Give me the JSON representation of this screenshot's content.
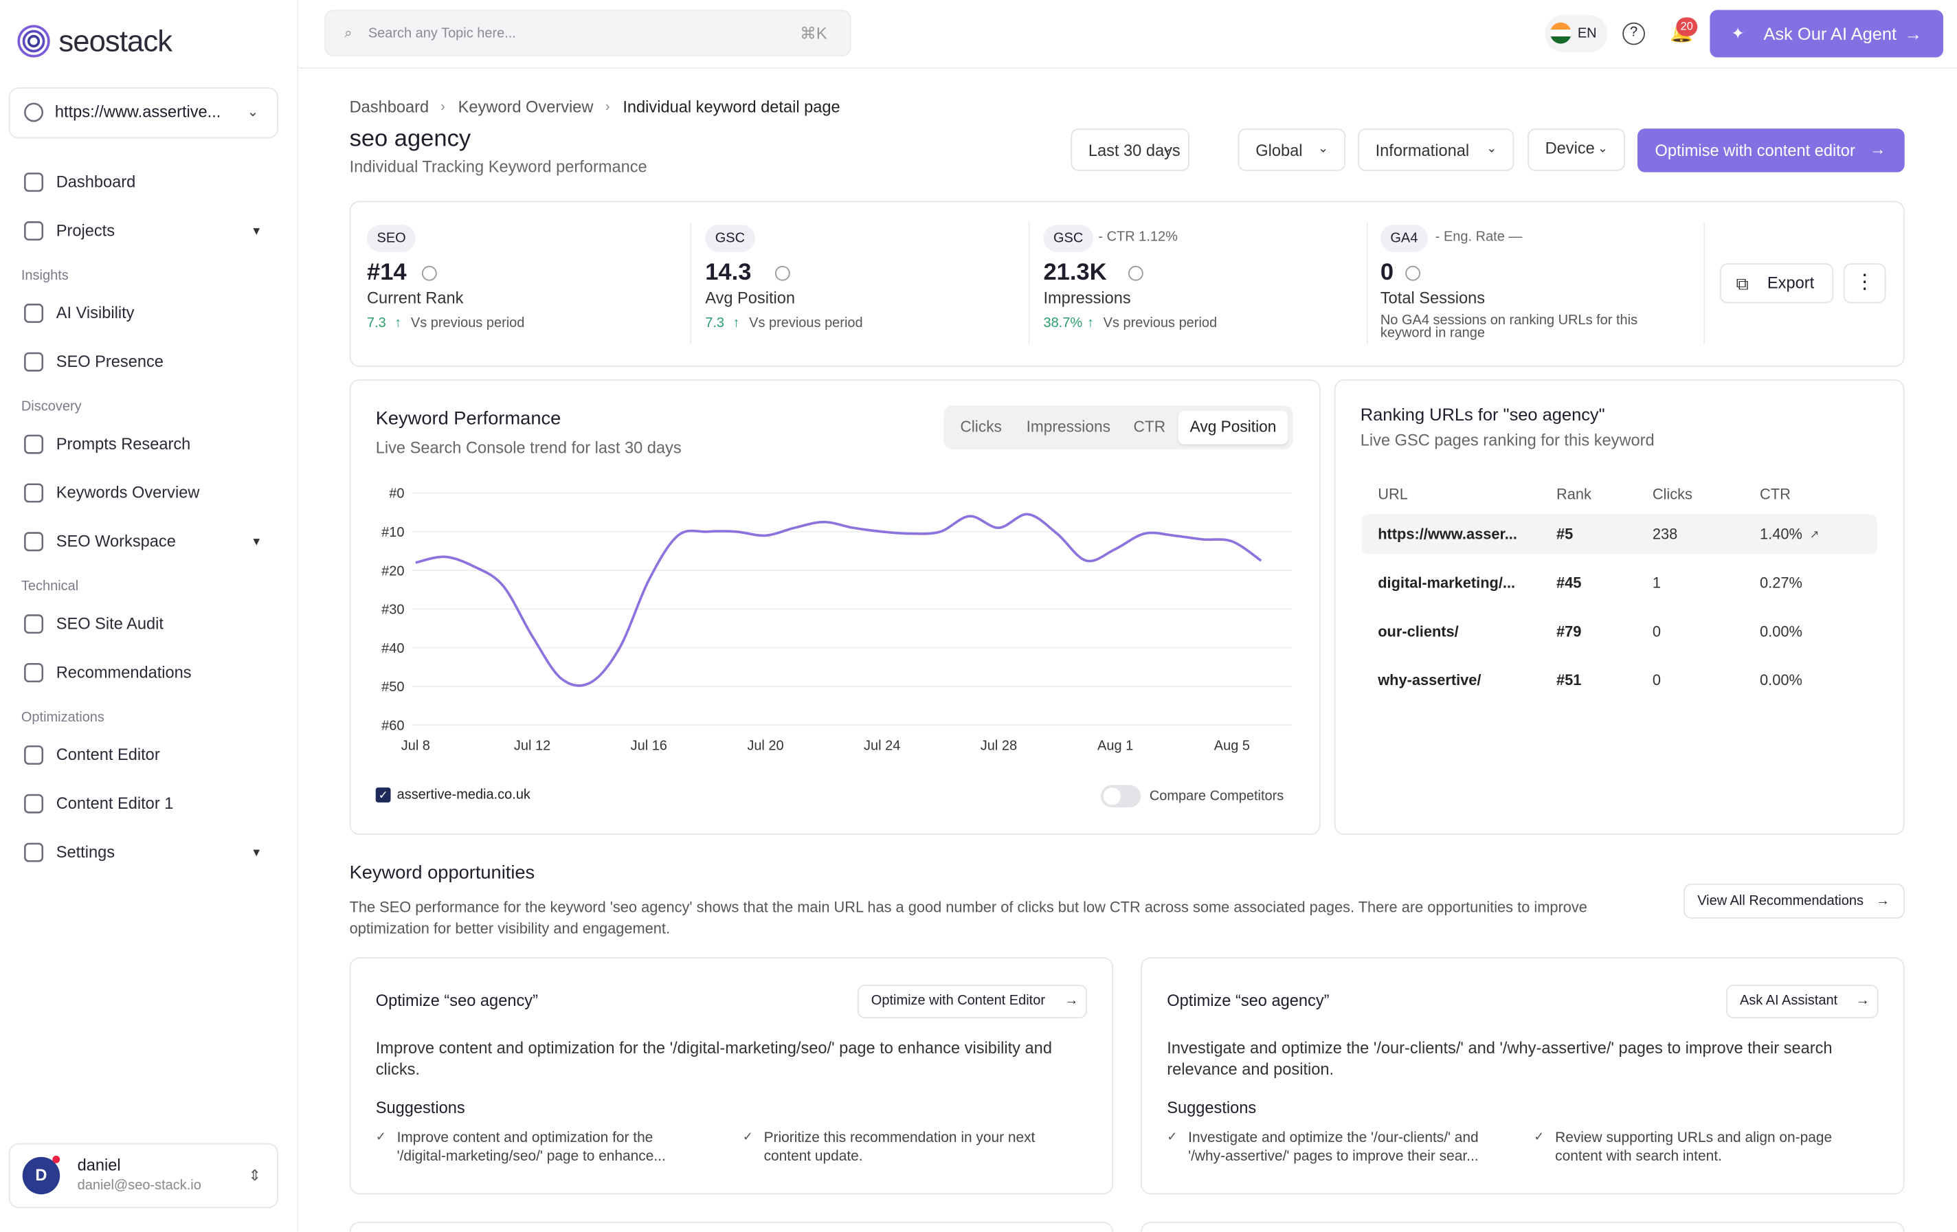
{
  "brand": "seostack",
  "sidebar": {
    "site": "https://www.assertive...",
    "groups": [
      {
        "items": [
          {
            "label": "Dashboard"
          },
          {
            "label": "Projects",
            "expandable": true
          }
        ]
      },
      {
        "heading": "Insights",
        "items": [
          {
            "label": "AI Visibility"
          },
          {
            "label": "SEO Presence"
          }
        ]
      },
      {
        "heading": "Discovery",
        "items": [
          {
            "label": "Prompts Research"
          },
          {
            "label": "Keywords Overview"
          },
          {
            "label": "SEO Workspace",
            "expandable": true
          }
        ]
      },
      {
        "heading": "Technical",
        "items": [
          {
            "label": "SEO Site Audit"
          },
          {
            "label": "Recommendations"
          }
        ]
      },
      {
        "heading": "Optimizations",
        "items": [
          {
            "label": "Content Editor"
          },
          {
            "label": "Content Editor 1"
          },
          {
            "label": "Settings",
            "expandable": true
          }
        ]
      }
    ],
    "user": {
      "initial": "D",
      "name": "daniel",
      "email": "daniel@seo-stack.io"
    }
  },
  "topbar": {
    "search_placeholder": "Search any Topic here...",
    "shortcut": "⌘K",
    "language": "EN",
    "notifications": "20",
    "agent_button": "Ask Our AI Agent"
  },
  "breadcrumb": [
    "Dashboard",
    "Keyword Overview",
    "Individual keyword detail page"
  ],
  "header": {
    "title": "seo agency",
    "subtitle": "Individual Tracking Keyword performance",
    "filters": [
      "Last 30 days",
      "Global",
      "Informational",
      "Device"
    ],
    "primary_button": "Optimise with content editor"
  },
  "kpis": [
    {
      "badge": "SEO",
      "value": "#14",
      "label": "Current Rank",
      "change": "7.3",
      "note": "Vs previous period"
    },
    {
      "badge": "GSC",
      "value": "14.3",
      "label": "Avg Position",
      "change": "7.3",
      "note": "Vs previous period"
    },
    {
      "badge": "GSC",
      "extra": "- CTR 1.12%",
      "value": "21.3K",
      "label": "Impressions",
      "change": "38.7%",
      "note": "Vs previous period"
    },
    {
      "badge": "GA4",
      "extra": "- Eng. Rate —",
      "value": "0",
      "label": "Total Sessions",
      "note": "No GA4 sessions on ranking URLs for this keyword in range"
    }
  ],
  "export_button": "Export",
  "chart_data": {
    "type": "line",
    "title": "Keyword Performance",
    "subtitle": "Live Search Console trend for last 30 days",
    "tabs": [
      "Clicks",
      "Impressions",
      "CTR",
      "Avg Position"
    ],
    "active_tab": 3,
    "categories": [
      "Jul 8",
      null,
      null,
      null,
      "Jul 12",
      null,
      null,
      null,
      "Jul 16",
      null,
      null,
      null,
      "Jul 20",
      null,
      null,
      null,
      "Jul 24",
      null,
      null,
      null,
      "Jul 28",
      null,
      null,
      null,
      "Aug 1",
      null,
      null,
      null,
      "Aug 5",
      null
    ],
    "series": [
      {
        "name": "assertive-media.co.uk",
        "color": "#8b72dc",
        "values": [
          18,
          16.5,
          19,
          24,
          37,
          48,
          49,
          40,
          22.5,
          11,
          10,
          10,
          11,
          9,
          7.5,
          9,
          10,
          10.5,
          10,
          6,
          9,
          5.5,
          10.5,
          17.5,
          14.5,
          10.5,
          11,
          12,
          12.5,
          17.5
        ]
      }
    ],
    "ylim": [
      0,
      60
    ],
    "y_inverted": true,
    "yticks": [
      {
        "value": 0,
        "label": "#0"
      },
      {
        "value": 10,
        "label": "#10"
      },
      {
        "value": 20,
        "label": "#20"
      },
      {
        "value": 30,
        "label": "#30"
      },
      {
        "value": 40,
        "label": "#40"
      },
      {
        "value": 50,
        "label": "#50"
      },
      {
        "value": 60,
        "label": "#60"
      }
    ],
    "grid": true,
    "compare_label": "Compare Competitors"
  },
  "ranking": {
    "title": "Ranking URLs for \"seo agency\"",
    "subtitle": "Live GSC pages ranking for this keyword",
    "columns": [
      "URL",
      "Rank",
      "Clicks",
      "CTR"
    ],
    "rows": [
      [
        "https://www.asser...",
        "#5",
        "238",
        "1.40%"
      ],
      [
        "digital-marketing/...",
        "#45",
        "1",
        "0.27%"
      ],
      [
        "our-clients/",
        "#79",
        "0",
        "0.00%"
      ],
      [
        "why-assertive/",
        "#51",
        "0",
        "0.00%"
      ]
    ]
  },
  "opportunities": {
    "title": "Keyword opportunities",
    "description": "The SEO performance for the keyword 'seo agency' shows that the main URL has a good number of clicks but low CTR across some associated pages. There are opportunities to improve optimization for better visibility and engagement.",
    "button": "View All Recommendations",
    "cards": [
      {
        "title": "Optimize “seo agency”",
        "button": "Optimize with Content Editor",
        "text": "Improve content and optimization for the '/digital-marketing/seo/' page to enhance visibility and clicks.",
        "suggestions_title": "Suggestions",
        "suggestions": [
          "Improve content and optimization for the '/digital-marketing/seo/' page to enhance...",
          "Prioritize this recommendation in your next content update."
        ]
      },
      {
        "title": "Optimize “seo agency”",
        "button": "Ask AI Assistant",
        "text": "Investigate and optimize the '/our-clients/' and '/why-assertive/' pages to improve their search relevance and position.",
        "suggestions_title": "Suggestions",
        "suggestions": [
          "Investigate and optimize the '/our-clients/' and '/why-assertive/' pages to improve their sear...",
          "Review supporting URLs and align on-page content with search intent."
        ]
      }
    ]
  }
}
